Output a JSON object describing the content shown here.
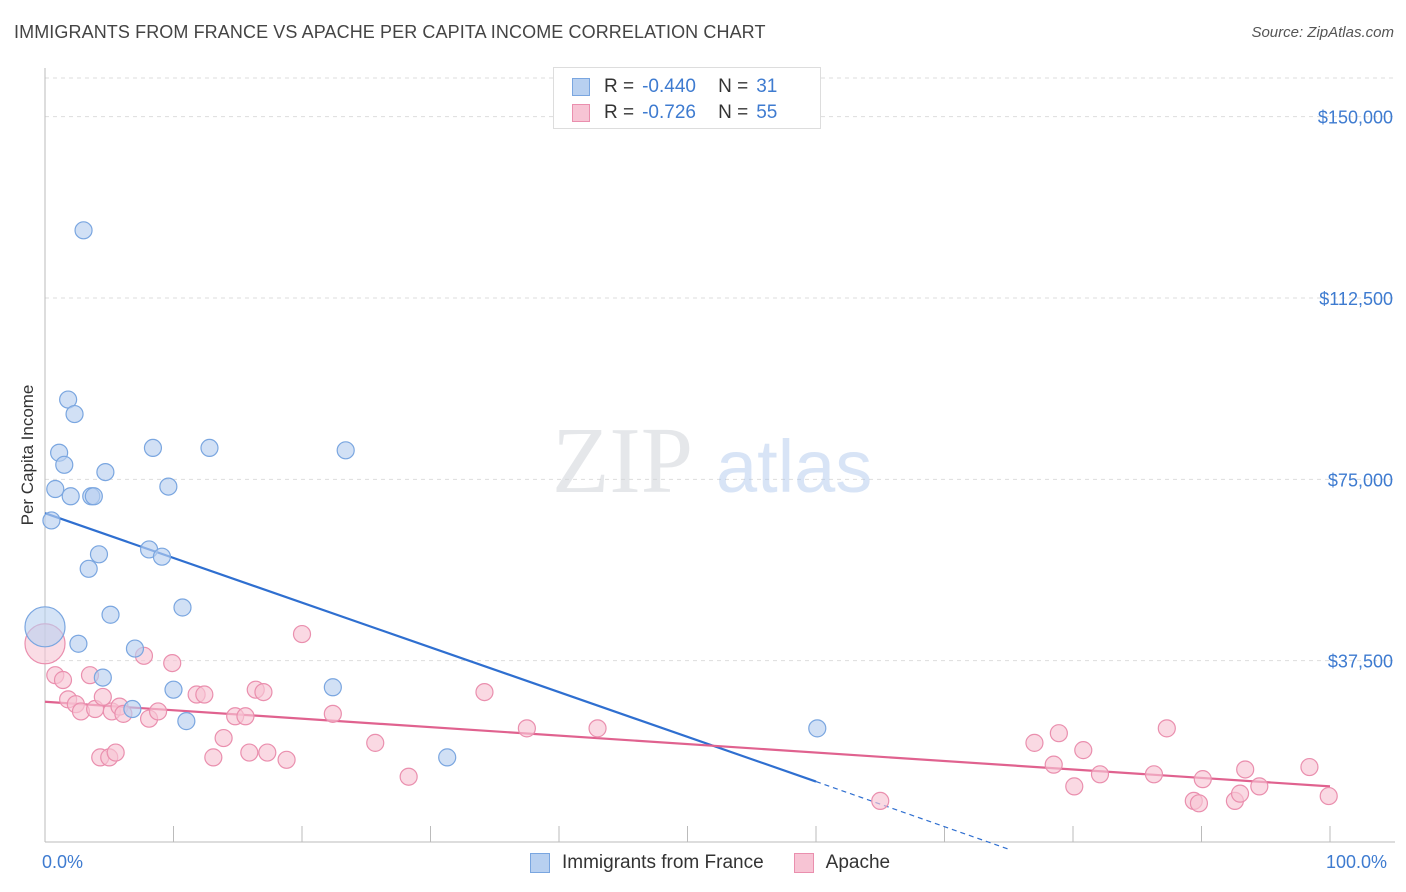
{
  "title": "IMMIGRANTS FROM FRANCE VS APACHE PER CAPITA INCOME CORRELATION CHART",
  "source": "Source: ZipAtlas.com",
  "watermark": {
    "zip": "ZIP",
    "atlas": "atlas"
  },
  "legend_top": [
    {
      "r_label": "R =",
      "r_value": "-0.440",
      "n_label": "N =",
      "n_value": "31"
    },
    {
      "r_label": "R =",
      "r_value": "-0.726",
      "n_label": "N =",
      "n_value": "55"
    }
  ],
  "colors": {
    "france_fill": "#b8d0f0",
    "france_stroke": "#7aa6e0",
    "france_line": "#2f6fd0",
    "apache_fill": "#f7c4d4",
    "apache_stroke": "#ea8fae",
    "apache_line": "#e0628f",
    "tick_text": "#3e7bd0",
    "grid": "#dddddd"
  },
  "chart_data": {
    "type": "scatter",
    "ylabel": "Per Capita Income",
    "xlim": [
      0,
      100
    ],
    "ylim": [
      0,
      158000
    ],
    "x_tick_labels": [
      "0.0%",
      "100.0%"
    ],
    "y_ticks": [
      {
        "value": 37500,
        "label": "$37,500"
      },
      {
        "value": 75000,
        "label": "$75,000"
      },
      {
        "value": 112500,
        "label": "$112,500"
      },
      {
        "value": 150000,
        "label": "$150,000"
      }
    ],
    "series": [
      {
        "name": "Immigrants from France",
        "r": -0.44,
        "n": 31,
        "trend": {
          "x0": 0,
          "y0": 68000,
          "x1": 60,
          "y1": 12500,
          "dash_to_x": 75,
          "dash_to_y": -1500
        },
        "points": [
          {
            "x": 0.0,
            "y": 44500,
            "big": true
          },
          {
            "x": 0.5,
            "y": 66500
          },
          {
            "x": 0.8,
            "y": 73000
          },
          {
            "x": 1.1,
            "y": 80500
          },
          {
            "x": 1.5,
            "y": 78000
          },
          {
            "x": 1.8,
            "y": 91500
          },
          {
            "x": 2.0,
            "y": 71500
          },
          {
            "x": 2.3,
            "y": 88500
          },
          {
            "x": 2.6,
            "y": 41000
          },
          {
            "x": 3.0,
            "y": 126500
          },
          {
            "x": 3.4,
            "y": 56500
          },
          {
            "x": 3.6,
            "y": 71500
          },
          {
            "x": 3.8,
            "y": 71500
          },
          {
            "x": 4.2,
            "y": 59500
          },
          {
            "x": 4.5,
            "y": 34000
          },
          {
            "x": 4.7,
            "y": 76500
          },
          {
            "x": 5.1,
            "y": 47000
          },
          {
            "x": 6.8,
            "y": 27500
          },
          {
            "x": 7.0,
            "y": 40000
          },
          {
            "x": 8.1,
            "y": 60500
          },
          {
            "x": 8.4,
            "y": 81500
          },
          {
            "x": 9.1,
            "y": 59000
          },
          {
            "x": 9.6,
            "y": 73500
          },
          {
            "x": 10.0,
            "y": 31500
          },
          {
            "x": 10.7,
            "y": 48500
          },
          {
            "x": 11.0,
            "y": 25000
          },
          {
            "x": 12.8,
            "y": 81500
          },
          {
            "x": 22.4,
            "y": 32000
          },
          {
            "x": 23.4,
            "y": 81000
          },
          {
            "x": 31.3,
            "y": 17500
          },
          {
            "x": 60.1,
            "y": 23500
          }
        ]
      },
      {
        "name": "Apache",
        "r": -0.726,
        "n": 55,
        "trend": {
          "x0": 0,
          "y0": 29000,
          "x1": 100,
          "y1": 11500
        },
        "points": [
          {
            "x": 0.0,
            "y": 41000,
            "big": true
          },
          {
            "x": 0.8,
            "y": 34500
          },
          {
            "x": 1.4,
            "y": 33500
          },
          {
            "x": 1.8,
            "y": 29500
          },
          {
            "x": 2.4,
            "y": 28500
          },
          {
            "x": 2.8,
            "y": 27000
          },
          {
            "x": 3.5,
            "y": 34500
          },
          {
            "x": 3.9,
            "y": 27500
          },
          {
            "x": 4.3,
            "y": 17500
          },
          {
            "x": 4.5,
            "y": 30000
          },
          {
            "x": 5.0,
            "y": 17500
          },
          {
            "x": 5.2,
            "y": 27000
          },
          {
            "x": 5.5,
            "y": 18500
          },
          {
            "x": 5.8,
            "y": 28000
          },
          {
            "x": 6.1,
            "y": 26500
          },
          {
            "x": 7.7,
            "y": 38500
          },
          {
            "x": 8.1,
            "y": 25500
          },
          {
            "x": 8.8,
            "y": 27000
          },
          {
            "x": 9.9,
            "y": 37000
          },
          {
            "x": 11.8,
            "y": 30500
          },
          {
            "x": 12.4,
            "y": 30500
          },
          {
            "x": 13.1,
            "y": 17500
          },
          {
            "x": 13.9,
            "y": 21500
          },
          {
            "x": 14.8,
            "y": 26000
          },
          {
            "x": 15.6,
            "y": 26000
          },
          {
            "x": 15.9,
            "y": 18500
          },
          {
            "x": 16.4,
            "y": 31500
          },
          {
            "x": 17.0,
            "y": 31000
          },
          {
            "x": 17.3,
            "y": 18500
          },
          {
            "x": 18.8,
            "y": 17000
          },
          {
            "x": 20.0,
            "y": 43000
          },
          {
            "x": 22.4,
            "y": 26500
          },
          {
            "x": 25.7,
            "y": 20500
          },
          {
            "x": 28.3,
            "y": 13500
          },
          {
            "x": 34.2,
            "y": 31000
          },
          {
            "x": 37.5,
            "y": 23500
          },
          {
            "x": 43.0,
            "y": 23500
          },
          {
            "x": 65.0,
            "y": 8500
          },
          {
            "x": 77.0,
            "y": 20500
          },
          {
            "x": 78.5,
            "y": 16000
          },
          {
            "x": 78.9,
            "y": 22500
          },
          {
            "x": 80.1,
            "y": 11500
          },
          {
            "x": 80.8,
            "y": 19000
          },
          {
            "x": 82.1,
            "y": 14000
          },
          {
            "x": 86.3,
            "y": 14000
          },
          {
            "x": 87.3,
            "y": 23500
          },
          {
            "x": 89.4,
            "y": 8500
          },
          {
            "x": 89.8,
            "y": 8000
          },
          {
            "x": 90.1,
            "y": 13000
          },
          {
            "x": 92.6,
            "y": 8500
          },
          {
            "x": 93.0,
            "y": 10000
          },
          {
            "x": 93.4,
            "y": 15000
          },
          {
            "x": 94.5,
            "y": 11500
          },
          {
            "x": 98.4,
            "y": 15500
          },
          {
            "x": 99.9,
            "y": 9500
          }
        ]
      }
    ]
  }
}
